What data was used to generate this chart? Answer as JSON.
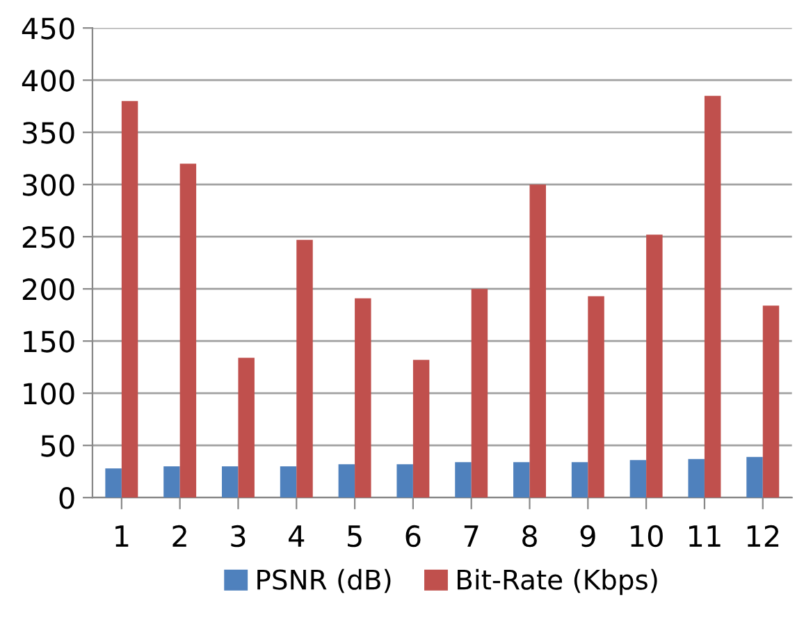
{
  "chart_data": {
    "type": "bar",
    "categories": [
      "1",
      "2",
      "3",
      "4",
      "5",
      "6",
      "7",
      "8",
      "9",
      "10",
      "11",
      "12"
    ],
    "series": [
      {
        "name": "PSNR (dB)",
        "color": "#4f81bd",
        "values": [
          28,
          30,
          30,
          30,
          32,
          32,
          34,
          34,
          34,
          36,
          37,
          39
        ]
      },
      {
        "name": "Bit-Rate (Kbps)",
        "color": "#c0504d",
        "values": [
          380,
          320,
          134,
          247,
          191,
          132,
          200,
          300,
          193,
          252,
          385,
          184
        ]
      }
    ],
    "ylim": [
      0,
      450
    ],
    "yticks": [
      0,
      50,
      100,
      150,
      200,
      250,
      300,
      350,
      400,
      450
    ],
    "grid": "y",
    "legend": "bottom"
  }
}
